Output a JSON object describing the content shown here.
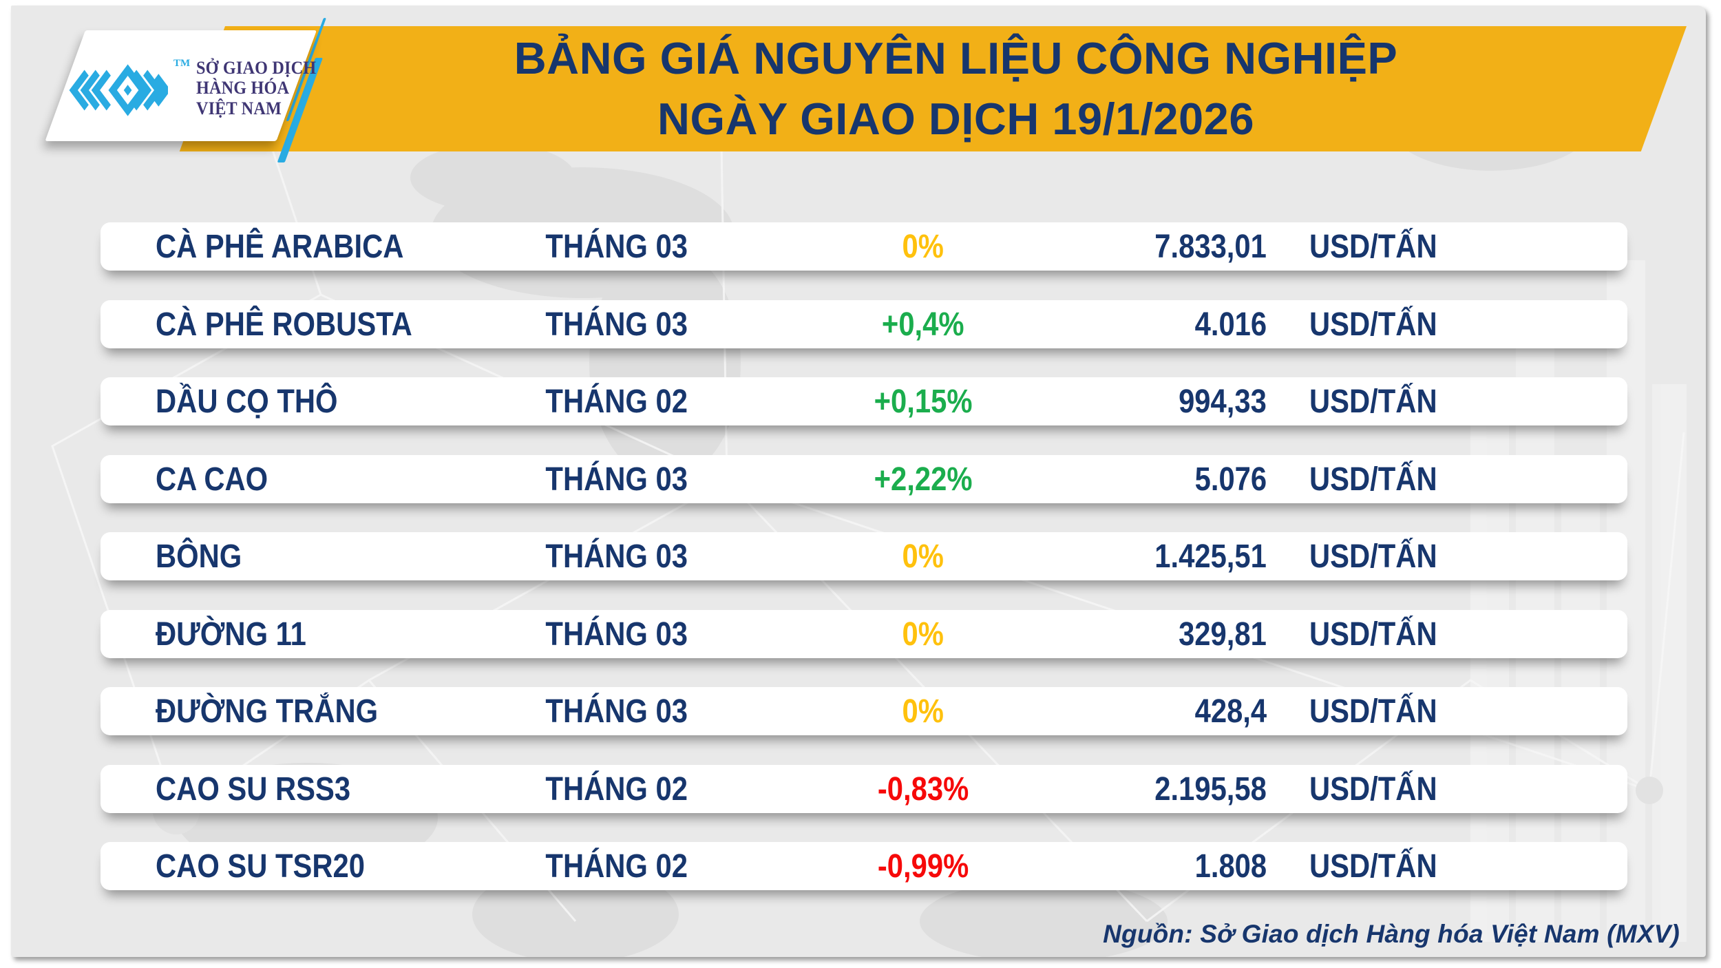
{
  "header": {
    "logo": {
      "line1": "SỞ GIAO DỊCH",
      "line2": "HÀNG HÓA",
      "line3": "VIỆT NAM",
      "trademark": "TM"
    },
    "title_line1": "BẢNG GIÁ NGUYÊN LIỆU CÔNG NGHIỆP",
    "title_line2": "NGÀY GIAO DỊCH 19/1/2026"
  },
  "table": {
    "rows": [
      {
        "name": "CÀ PHÊ ARABICA",
        "month": "THÁNG 03",
        "change": "0%",
        "direction": "flat",
        "price": "7.833,01",
        "unit": "USD/TẤN"
      },
      {
        "name": "CÀ PHÊ ROBUSTA",
        "month": "THÁNG 03",
        "change": "+0,4%",
        "direction": "up",
        "price": "4.016",
        "unit": "USD/TẤN"
      },
      {
        "name": "DẦU CỌ THÔ",
        "month": "THÁNG 02",
        "change": "+0,15%",
        "direction": "up",
        "price": "994,33",
        "unit": "USD/TẤN"
      },
      {
        "name": "CA CAO",
        "month": "THÁNG 03",
        "change": "+2,22%",
        "direction": "up",
        "price": "5.076",
        "unit": "USD/TẤN"
      },
      {
        "name": "BÔNG",
        "month": "THÁNG 03",
        "change": "0%",
        "direction": "flat",
        "price": "1.425,51",
        "unit": "USD/TẤN"
      },
      {
        "name": "ĐƯỜNG 11",
        "month": "THÁNG 03",
        "change": "0%",
        "direction": "flat",
        "price": "329,81",
        "unit": "USD/TẤN"
      },
      {
        "name": "ĐƯỜNG TRẮNG",
        "month": "THÁNG 03",
        "change": "0%",
        "direction": "flat",
        "price": "428,4",
        "unit": "USD/TẤN"
      },
      {
        "name": "CAO SU RSS3",
        "month": "THÁNG 02",
        "change": "-0,83%",
        "direction": "down",
        "price": "2.195,58",
        "unit": "USD/TẤN"
      },
      {
        "name": "CAO SU TSR20",
        "month": "THÁNG 02",
        "change": "-0,99%",
        "direction": "down",
        "price": "1.808",
        "unit": "USD/TẤN"
      }
    ]
  },
  "footer": {
    "source": "Nguồn: Sở Giao dịch Hàng hóa Việt Nam (MXV)"
  },
  "colors": {
    "navy": "#17366d",
    "logo_text": "#3f3674",
    "cyan": "#29abe2",
    "banner_yellow": "#f2b017",
    "panel_gray": "#e9e9e9",
    "change": {
      "flat": "#ffc10d",
      "up": "#1bad4d",
      "down": "#f60909"
    }
  },
  "chart_data": {
    "type": "table",
    "title": "BẢNG GIÁ NGUYÊN LIỆU CÔNG NGHIỆP",
    "subtitle": "NGÀY GIAO DỊCH 19/1/2026",
    "columns": [
      "commodity",
      "contract_month",
      "change_percent",
      "price",
      "unit"
    ],
    "rows": [
      [
        "CÀ PHÊ ARABICA",
        "THÁNG 03",
        0.0,
        7833.01,
        "USD/TẤN"
      ],
      [
        "CÀ PHÊ ROBUSTA",
        "THÁNG 03",
        0.4,
        4016,
        "USD/TẤN"
      ],
      [
        "DẦU CỌ THÔ",
        "THÁNG 02",
        0.15,
        994.33,
        "USD/TẤN"
      ],
      [
        "CA CAO",
        "THÁNG 03",
        2.22,
        5076,
        "USD/TẤN"
      ],
      [
        "BÔNG",
        "THÁNG 03",
        0.0,
        1425.51,
        "USD/TẤN"
      ],
      [
        "ĐƯỜNG 11",
        "THÁNG 03",
        0.0,
        329.81,
        "USD/TẤN"
      ],
      [
        "ĐƯỜNG TRẮNG",
        "THÁNG 03",
        0.0,
        428.4,
        "USD/TẤN"
      ],
      [
        "CAO SU RSS3",
        "THÁNG 02",
        -0.83,
        2195.58,
        "USD/TẤN"
      ],
      [
        "CAO SU TSR20",
        "THÁNG 02",
        -0.99,
        1808,
        "USD/TẤN"
      ]
    ],
    "source": "Nguồn: Sở Giao dịch Hàng hóa Việt Nam (MXV)"
  }
}
